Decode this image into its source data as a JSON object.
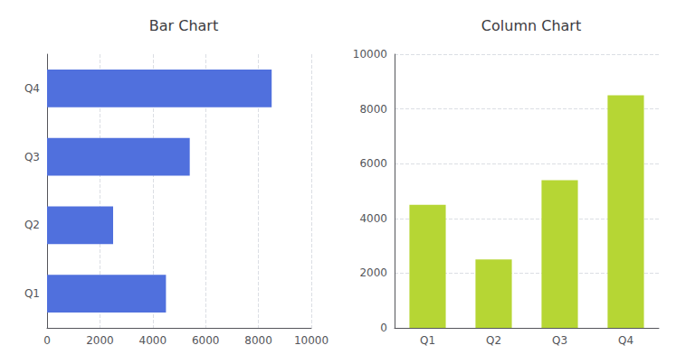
{
  "chart_data": [
    {
      "type": "bar",
      "title": "Bar Chart",
      "orientation": "horizontal",
      "categories": [
        "Q1",
        "Q2",
        "Q3",
        "Q4"
      ],
      "values": [
        4500,
        2500,
        5400,
        8500
      ],
      "xlim": [
        0,
        10000
      ],
      "xticks": [
        0,
        2000,
        4000,
        6000,
        8000,
        10000
      ],
      "grid": true
    },
    {
      "type": "bar",
      "title": "Column Chart",
      "categories": [
        "Q1",
        "Q2",
        "Q3",
        "Q4"
      ],
      "values": [
        4500,
        2500,
        5400,
        8500
      ],
      "ylim": [
        0,
        10000
      ],
      "yticks": [
        0,
        2000,
        4000,
        6000,
        8000,
        10000
      ],
      "grid": true
    }
  ]
}
